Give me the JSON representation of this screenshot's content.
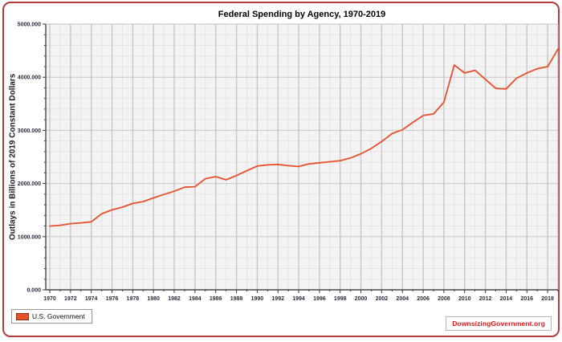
{
  "frame": {
    "border_color": "#b23b3b"
  },
  "chart_data": {
    "type": "line",
    "title": "Federal Spending by Agency, 1970-2019",
    "xlabel": "",
    "ylabel": "Outlays in Billions of 2019 Constant Dollars",
    "x": [
      1970,
      1971,
      1972,
      1973,
      1974,
      1975,
      1976,
      1977,
      1978,
      1979,
      1980,
      1981,
      1982,
      1983,
      1984,
      1985,
      1986,
      1987,
      1988,
      1989,
      1990,
      1991,
      1992,
      1993,
      1994,
      1995,
      1996,
      1997,
      1998,
      1999,
      2000,
      2001,
      2002,
      2003,
      2004,
      2005,
      2006,
      2007,
      2008,
      2009,
      2010,
      2011,
      2012,
      2013,
      2014,
      2015,
      2016,
      2017,
      2018,
      2019
    ],
    "series": [
      {
        "name": "U.S. Government",
        "color": "#e8502b",
        "values": [
          1200,
          1215,
          1245,
          1260,
          1280,
          1430,
          1505,
          1555,
          1625,
          1660,
          1730,
          1795,
          1855,
          1930,
          1940,
          2090,
          2130,
          2070,
          2150,
          2240,
          2330,
          2350,
          2360,
          2335,
          2320,
          2370,
          2390,
          2410,
          2430,
          2480,
          2560,
          2660,
          2790,
          2940,
          3010,
          3150,
          3280,
          3310,
          3530,
          4230,
          4080,
          4130,
          3960,
          3790,
          3780,
          3980,
          4080,
          4160,
          4200,
          4530
        ]
      }
    ],
    "xlim": [
      1970,
      2019
    ],
    "ylim": [
      0,
      5000
    ],
    "x_major_step": 2,
    "x_minor_step": 1,
    "y_major_step": 1000,
    "y_minor_step": 200,
    "x_tick_labels": [
      "1970",
      "1972",
      "1974",
      "1976",
      "1978",
      "1980",
      "1982",
      "1984",
      "1986",
      "1988",
      "1990",
      "1992",
      "1994",
      "1996",
      "1998",
      "2000",
      "2002",
      "2004",
      "2006",
      "2008",
      "2010",
      "2012",
      "2014",
      "2016",
      "2018"
    ],
    "y_tick_labels": [
      "0.000",
      "1000.000",
      "2000.000",
      "3000.000",
      "4000.000",
      "5000.000"
    ],
    "grid": true,
    "legend_position": "bottom-left",
    "plot_bg": "#f3f3f3",
    "grid_major_color": "#c7c7c7",
    "grid_minor_color": "#e3e3e3",
    "plot_border_color": "#c0c0c0",
    "axis_color": "#4a4a4a",
    "tick_color": "#333333"
  },
  "legend": {
    "label": "U.S. Government",
    "swatch_color": "#e8502b"
  },
  "watermark": {
    "text": "DownsizingGovernment.org",
    "color": "#e01616"
  }
}
